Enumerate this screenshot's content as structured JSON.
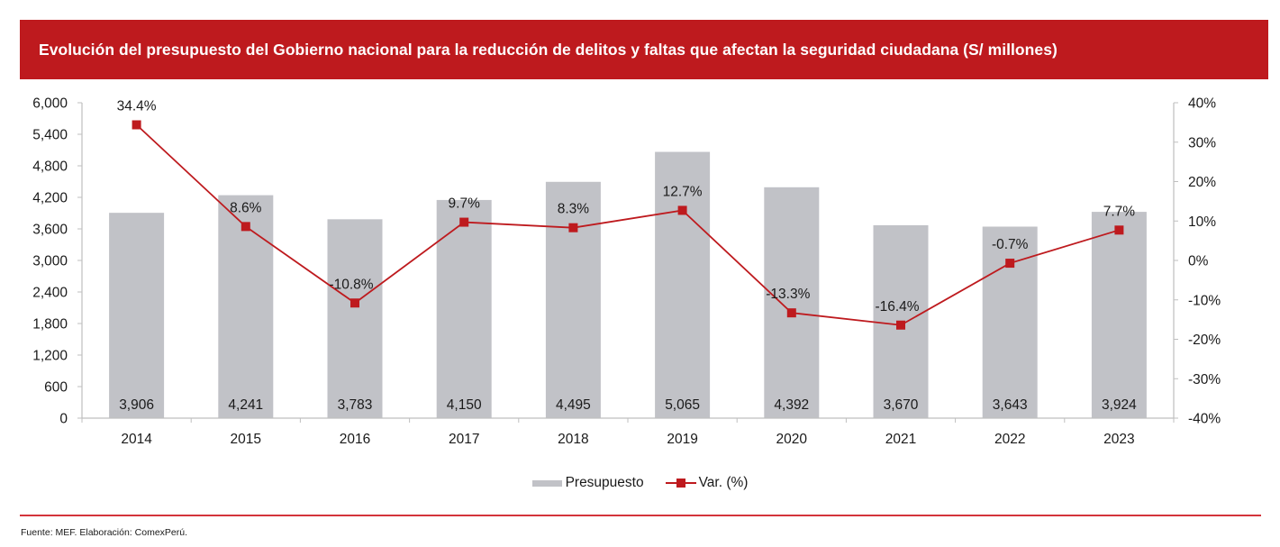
{
  "header": {
    "title": "Evolución del presupuesto del Gobierno nacional para la reducción de delitos y faltas que afectan la seguridad ciudadana (S/ millones)"
  },
  "colors": {
    "brand_red": "#be1a1e",
    "bar_gray": "#c1c2c7",
    "axis_gray": "#bfbfbf"
  },
  "chart_data": {
    "type": "bar",
    "title": "Evolución del presupuesto del Gobierno nacional para la reducción de delitos y faltas que afectan la seguridad ciudadana (S/ millones)",
    "categories": [
      "2014",
      "2015",
      "2016",
      "2017",
      "2018",
      "2019",
      "2020",
      "2021",
      "2022",
      "2023"
    ],
    "series": [
      {
        "name": "Presupuesto",
        "type": "bar",
        "axis": "left",
        "values": [
          3906,
          4241,
          3783,
          4150,
          4495,
          5065,
          4392,
          3670,
          3643,
          3924
        ],
        "labels": [
          "3,906",
          "4,241",
          "3,783",
          "4,150",
          "4,495",
          "5,065",
          "4,392",
          "3,670",
          "3,643",
          "3,924"
        ]
      },
      {
        "name": "Var. (%)",
        "type": "line",
        "axis": "right",
        "marker": "square",
        "values": [
          34.4,
          8.6,
          -10.8,
          9.7,
          8.3,
          12.7,
          -13.3,
          -16.4,
          -0.7,
          7.7
        ],
        "labels": [
          "34.4%",
          "8.6%",
          "-10.8%",
          "9.7%",
          "8.3%",
          "12.7%",
          "-13.3%",
          "-16.4%",
          "-0.7%",
          "7.7%"
        ]
      }
    ],
    "xlabel": "",
    "ylabel": "",
    "ylim": [
      0,
      6000
    ],
    "yticks": [
      0,
      600,
      1200,
      1800,
      2400,
      3000,
      3600,
      4200,
      4800,
      5400,
      6000
    ],
    "ytick_labels": [
      "0",
      "600",
      "1,200",
      "1,800",
      "2,400",
      "3,000",
      "3,600",
      "4,200",
      "4,800",
      "5,400",
      "6,000"
    ],
    "y2lim": [
      -40,
      40
    ],
    "y2ticks": [
      -40,
      -30,
      -20,
      -10,
      0,
      10,
      20,
      30,
      40
    ],
    "y2tick_labels": [
      "-40%",
      "-30%",
      "-20%",
      "-10%",
      "0%",
      "10%",
      "20%",
      "30%",
      "40%"
    ],
    "grid": false,
    "legend": [
      "Presupuesto",
      "Var. (%)"
    ],
    "legend_position": "bottom-center"
  },
  "legend": {
    "bar_label": "Presupuesto",
    "line_label": "Var. (%)"
  },
  "footer": {
    "source": "Fuente: MEF. Elaboración: ComexPerú."
  }
}
